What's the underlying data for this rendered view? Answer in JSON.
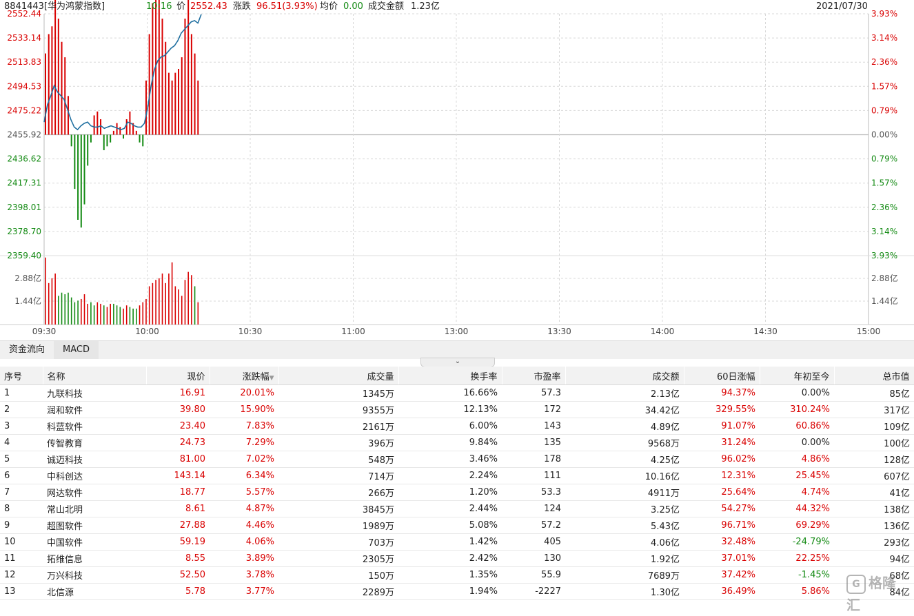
{
  "header": {
    "code_name": "8841443[华为鸿蒙指数]",
    "time": "10:16",
    "price_label": "价",
    "price": "2552.43",
    "change_label": "涨跌",
    "change": "96.51(3.93%)",
    "avg_label": "均价",
    "avg": "0.00",
    "turnover_label": "成交金额",
    "turnover": "1.23亿",
    "date": "2021/07/30"
  },
  "colors": {
    "up": "#d90000",
    "down": "#138a13",
    "line": "#1f6fa0",
    "grid": "#d8d8d8"
  },
  "chart_data": {
    "type": "line",
    "base_price": 2455.92,
    "ylim": [
      2359.4,
      2552.44
    ],
    "y_ticks_left": [
      "2552.44",
      "2533.14",
      "2513.83",
      "2494.53",
      "2475.22",
      "2455.92",
      "2436.62",
      "2417.31",
      "2398.01",
      "2378.70",
      "2359.40"
    ],
    "y_ticks_right": [
      "3.93%",
      "3.14%",
      "2.36%",
      "1.57%",
      "0.79%",
      "0.00%",
      "0.79%",
      "1.57%",
      "2.36%",
      "3.14%",
      "3.93%"
    ],
    "x_ticks": [
      "09:30",
      "10:00",
      "10:30",
      "11:00",
      "13:00",
      "13:30",
      "14:00",
      "14:30",
      "15:00"
    ],
    "x_total_minutes": 240,
    "price_series": [
      2466,
      2480,
      2487,
      2495,
      2490,
      2487,
      2484,
      2476,
      2468,
      2462,
      2460,
      2463,
      2465,
      2466,
      2463,
      2462,
      2462,
      2463,
      2461,
      2462,
      2463,
      2462,
      2461,
      2460,
      2461,
      2466,
      2465,
      2463,
      2462,
      2462,
      2465,
      2478,
      2495,
      2508,
      2515,
      2518,
      2519,
      2522,
      2525,
      2527,
      2531,
      2537,
      2540,
      2543,
      2546,
      2547,
      2545,
      2552
    ],
    "flow_series": [
      21,
      26,
      28,
      36,
      30,
      24,
      20,
      10,
      -3,
      -14,
      -22,
      -24,
      -18,
      -8,
      -2,
      5,
      6,
      4,
      -4,
      -3,
      -2,
      1,
      3,
      2,
      -1,
      4,
      6,
      3,
      1,
      -2,
      -3,
      14,
      26,
      34,
      48,
      42,
      30,
      24,
      16,
      14,
      16,
      17,
      20,
      30,
      36,
      26,
      21,
      14
    ],
    "vol_ylim": [
      0,
      4.32
    ],
    "vol_ticks": [
      "2.88亿",
      "1.44亿"
    ],
    "volume_series": [
      4.2,
      2.6,
      2.9,
      3.2,
      1.8,
      2.0,
      1.9,
      2.0,
      1.7,
      1.4,
      1.5,
      1.6,
      1.9,
      1.3,
      1.4,
      1.2,
      1.4,
      1.3,
      1.2,
      1.1,
      1.3,
      1.3,
      1.2,
      1.1,
      1.0,
      1.2,
      1.1,
      1.0,
      1.0,
      1.2,
      1.4,
      1.6,
      2.4,
      2.6,
      2.8,
      2.9,
      3.2,
      2.6,
      3.2,
      3.9,
      2.4,
      2.2,
      1.8,
      2.8,
      3.3,
      3.1,
      2.4,
      1.4
    ]
  },
  "tabs": [
    {
      "label": "资金流向",
      "active": false
    },
    {
      "label": "MACD",
      "active": true
    }
  ],
  "table": {
    "columns": [
      "序号",
      "名称",
      "现价",
      "涨跌幅",
      "成交量",
      "换手率",
      "市盈率",
      "成交额",
      "60日涨幅",
      "年初至今",
      "总市值"
    ],
    "sorted_col_arrow": "▼",
    "rows": [
      [
        "1",
        "九联科技",
        "16.91",
        "20.01%",
        "1345万",
        "16.66%",
        "57.3",
        "2.13亿",
        "94.37%",
        "0.00%",
        "85亿"
      ],
      [
        "2",
        "润和软件",
        "39.80",
        "15.90%",
        "9355万",
        "12.13%",
        "172",
        "34.42亿",
        "329.55%",
        "310.24%",
        "317亿"
      ],
      [
        "3",
        "科蓝软件",
        "23.40",
        "7.83%",
        "2161万",
        "6.00%",
        "143",
        "4.89亿",
        "91.07%",
        "60.86%",
        "109亿"
      ],
      [
        "4",
        "传智教育",
        "24.73",
        "7.29%",
        "396万",
        "9.84%",
        "135",
        "9568万",
        "31.24%",
        "0.00%",
        "100亿"
      ],
      [
        "5",
        "诚迈科技",
        "81.00",
        "7.02%",
        "548万",
        "3.46%",
        "178",
        "4.25亿",
        "96.02%",
        "4.86%",
        "128亿"
      ],
      [
        "6",
        "中科创达",
        "143.14",
        "6.34%",
        "714万",
        "2.24%",
        "111",
        "10.16亿",
        "12.31%",
        "25.45%",
        "607亿"
      ],
      [
        "7",
        "网达软件",
        "18.77",
        "5.57%",
        "266万",
        "1.20%",
        "53.3",
        "4911万",
        "25.64%",
        "4.74%",
        "41亿"
      ],
      [
        "8",
        "常山北明",
        "8.61",
        "4.87%",
        "3845万",
        "2.44%",
        "124",
        "3.25亿",
        "54.27%",
        "44.32%",
        "138亿"
      ],
      [
        "9",
        "超图软件",
        "27.88",
        "4.46%",
        "1989万",
        "5.08%",
        "57.2",
        "5.43亿",
        "96.71%",
        "69.29%",
        "136亿"
      ],
      [
        "10",
        "中国软件",
        "59.19",
        "4.06%",
        "703万",
        "1.42%",
        "405",
        "4.06亿",
        "32.48%",
        "-24.79%",
        "293亿"
      ],
      [
        "11",
        "拓维信息",
        "8.55",
        "3.89%",
        "2305万",
        "2.42%",
        "130",
        "1.92亿",
        "37.01%",
        "22.25%",
        "94亿"
      ],
      [
        "12",
        "万兴科技",
        "52.50",
        "3.78%",
        "150万",
        "1.35%",
        "55.9",
        "7689万",
        "37.42%",
        "-1.45%",
        "68亿"
      ],
      [
        "13",
        "北信源",
        "5.78",
        "3.77%",
        "2289万",
        "1.94%",
        "-2227",
        "1.30亿",
        "36.49%",
        "5.86%",
        "84亿"
      ]
    ]
  },
  "watermark": {
    "logo": "G",
    "text": "格隆汇"
  }
}
